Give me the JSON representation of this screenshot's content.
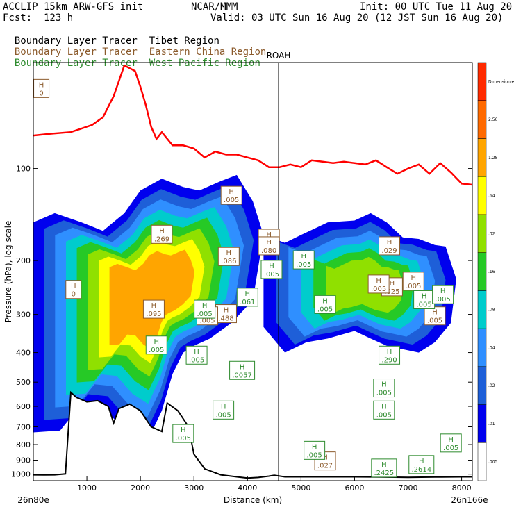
{
  "header": {
    "model": "ACCLIP 15km ARW-GFS init",
    "center": "NCAR/MMM",
    "init": "Init: 00 UTC Tue 11 Aug 20",
    "fcst": "Fcst:  123 h",
    "valid": "Valid: 03 UTC Sun 16 Aug 20 (12 JST Sun 16 Aug 20)",
    "legend": [
      {
        "left": "Boundary Layer Tracer",
        "right": "Tibet Region",
        "color": "#000000"
      },
      {
        "left": "Boundary Layer Tracer",
        "right": "Eastern China Region",
        "color": "#8b5a2b"
      },
      {
        "left": "Boundary Layer Tracer",
        "right": "West Pacific Region",
        "color": "#2e8b2e"
      }
    ]
  },
  "chart_data": {
    "type": "heatmap",
    "title": "",
    "xlabel": "Distance (km)",
    "ylabel": "Pressure (hPa), log scale",
    "x_endpoints": {
      "left": "26n80e",
      "right": "26n166e"
    },
    "marker_label": "ROAH",
    "marker_x": 4580,
    "xlim": [
      0,
      8200
    ],
    "ylim": [
      1050,
      45
    ],
    "log_y": true,
    "xticks": [
      1000,
      2000,
      3000,
      4000,
      5000,
      6000,
      7000,
      8000
    ],
    "yticks": [
      100,
      200,
      300,
      400,
      500,
      600,
      700,
      800,
      900,
      1000
    ],
    "colorbar": {
      "levels": [
        ".005",
        ".01",
        ".02",
        ".04",
        ".08",
        ".16",
        ".32",
        ".64",
        "1.28",
        "2.56",
        "Dimensionless"
      ],
      "colors": [
        "#ffffff",
        "#0000ee",
        "#1e5fd8",
        "#2f8fff",
        "#00cccc",
        "#26c926",
        "#90e000",
        "#ffff00",
        "#ffa500",
        "#ff6a00",
        "#ff2a00"
      ]
    },
    "tropopause": {
      "color": "#ff0000",
      "x": [
        0,
        300,
        700,
        900,
        1100,
        1300,
        1500,
        1700,
        1900,
        2000,
        2100,
        2200,
        2300,
        2400,
        2600,
        2800,
        3000,
        3200,
        3400,
        3600,
        3800,
        4000,
        4200,
        4400,
        4600,
        4800,
        5000,
        5200,
        5400,
        5600,
        5800,
        6000,
        6200,
        6400,
        6600,
        6800,
        7000,
        7200,
        7400,
        7600,
        7800,
        8000,
        8200
      ],
      "y": [
        78,
        77,
        76,
        74,
        72,
        68,
        58,
        46,
        48,
        54,
        62,
        73,
        80,
        76,
        84,
        84,
        86,
        92,
        88,
        90,
        90,
        92,
        94,
        99,
        99,
        97,
        99,
        94,
        95,
        96,
        95,
        96,
        97,
        94,
        99,
        104,
        100,
        97,
        104,
        96,
        103,
        112,
        113
      ]
    },
    "terrain": {
      "color": "#000000",
      "x": [
        0,
        200,
        400,
        600,
        700,
        800,
        1000,
        1200,
        1400,
        1500,
        1600,
        1800,
        2000,
        2200,
        2400,
        2500,
        2700,
        2900,
        3000,
        3200,
        3500,
        3800,
        4000,
        4200,
        4400,
        4500,
        4700,
        5000,
        5500,
        6000,
        6500,
        7000,
        7500,
        8000,
        8200
      ],
      "y": [
        1005,
        1006,
        1005,
        998,
        540,
        560,
        580,
        575,
        600,
        680,
        610,
        590,
        620,
        700,
        725,
        585,
        620,
        700,
        860,
        960,
        1005,
        1020,
        1030,
        1025,
        1015,
        1008,
        1020,
        1020,
        1020,
        1020,
        1022,
        1024,
        1022,
        1020,
        1020
      ]
    },
    "maxima": [
      {
        "value": "0",
        "x": 750,
        "p": 250,
        "color": "#8b5a2b"
      },
      {
        "value": "0",
        "x": 150,
        "p": 55,
        "color": "#8b5a2b"
      },
      {
        "value": ".269",
        "x": 2400,
        "p": 165,
        "color": "#8b5a2b"
      },
      {
        "value": ".086",
        "x": 3650,
        "p": 195,
        "color": "#8b5a2b"
      },
      {
        "value": ".095",
        "x": 2250,
        "p": 290,
        "color": "#8b5a2b"
      },
      {
        "value": ".488",
        "x": 3600,
        "p": 300,
        "color": "#8b5a2b"
      },
      {
        "value": ".005",
        "x": 3250,
        "p": 305,
        "color": "#8b5a2b"
      },
      {
        "value": ".005",
        "x": 3700,
        "p": 123,
        "color": "#8b5a2b"
      },
      {
        "value": ".005",
        "x": 4400,
        "p": 170,
        "color": "#8b5a2b"
      },
      {
        "value": ".080",
        "x": 4400,
        "p": 180,
        "color": "#8b5a2b"
      },
      {
        "value": ".029",
        "x": 6650,
        "p": 180,
        "color": "#8b5a2b"
      },
      {
        "value": ".025",
        "x": 6700,
        "p": 245,
        "color": "#8b5a2b"
      },
      {
        "value": ".005",
        "x": 7100,
        "p": 235,
        "color": "#8b5a2b"
      },
      {
        "value": ".005",
        "x": 6450,
        "p": 240,
        "color": "#8b5a2b"
      },
      {
        "value": ".005",
        "x": 7500,
        "p": 305,
        "color": "#8b5a2b"
      },
      {
        "value": ".061",
        "x": 4000,
        "p": 265,
        "color": "#2e8b2e"
      },
      {
        "value": ".005",
        "x": 3200,
        "p": 290,
        "color": "#2e8b2e"
      },
      {
        "value": ".005",
        "x": 3050,
        "p": 410,
        "color": "#2e8b2e"
      },
      {
        "value": ".005",
        "x": 2300,
        "p": 380,
        "color": "#2e8b2e"
      },
      {
        "value": ".0057",
        "x": 3900,
        "p": 460,
        "color": "#2e8b2e"
      },
      {
        "value": ".290",
        "x": 6650,
        "p": 410,
        "color": "#2e8b2e"
      },
      {
        "value": ".005",
        "x": 6550,
        "p": 525,
        "color": "#2e8b2e"
      },
      {
        "value": ".005",
        "x": 6550,
        "p": 620,
        "color": "#2e8b2e"
      },
      {
        "value": ".005",
        "x": 3550,
        "p": 620,
        "color": "#2e8b2e"
      },
      {
        "value": ".005",
        "x": 2800,
        "p": 740,
        "color": "#2e8b2e"
      },
      {
        "value": ".005",
        "x": 7800,
        "p": 795,
        "color": "#2e8b2e"
      },
      {
        "value": ".2614",
        "x": 7250,
        "p": 935,
        "color": "#2e8b2e"
      },
      {
        "value": ".2425",
        "x": 6550,
        "p": 960,
        "color": "#2e8b2e"
      },
      {
        "value": ".005",
        "x": 4450,
        "p": 215,
        "color": "#2e8b2e"
      },
      {
        "value": ".005",
        "x": 5050,
        "p": 200,
        "color": "#2e8b2e"
      },
      {
        "value": ".005",
        "x": 7300,
        "p": 270,
        "color": "#2e8b2e"
      },
      {
        "value": ".005",
        "x": 7650,
        "p": 260,
        "color": "#2e8b2e"
      },
      {
        "value": ".005",
        "x": 5450,
        "p": 280,
        "color": "#2e8b2e"
      },
      {
        "value": ".027",
        "x": 5450,
        "p": 910,
        "color": "#8b5a2b"
      },
      {
        "value": ".005",
        "x": 5250,
        "p": 840,
        "color": "#2e8b2e"
      }
    ],
    "plumes": [
      {
        "name": "tibet-plume",
        "x": [
          0,
          400,
          900,
          1300,
          1700,
          2000,
          2400,
          2800,
          3100,
          3500,
          3800,
          4100,
          4300,
          4100,
          3700,
          3300,
          3000,
          2800,
          2600,
          2400,
          2100,
          1700,
          1300,
          900,
          500,
          0
        ],
        "p": [
          150,
          140,
          150,
          160,
          140,
          118,
          108,
          115,
          118,
          110,
          105,
          128,
          165,
          270,
          320,
          360,
          380,
          400,
          470,
          620,
          800,
          720,
          600,
          590,
          720,
          730
        ]
      },
      {
        "name": "pacific-plume",
        "x": [
          4300,
          4700,
          5000,
          5500,
          6000,
          6300,
          6600,
          6900,
          7200,
          7500,
          7700,
          7900,
          7800,
          7500,
          7200,
          6900,
          6600,
          6300,
          6000,
          5500,
          5100,
          4700,
          4300
        ],
        "p": [
          165,
          175,
          165,
          150,
          148,
          140,
          150,
          168,
          170,
          178,
          180,
          230,
          320,
          370,
          400,
          390,
          380,
          360,
          340,
          360,
          370,
          400,
          330
        ]
      }
    ]
  }
}
